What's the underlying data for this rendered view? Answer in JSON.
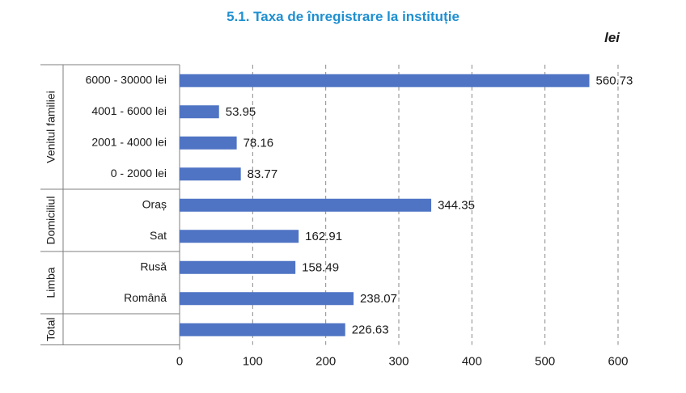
{
  "title": "5.1. Taxa de înregistrare la instituție",
  "unit": "lei",
  "chart_data": {
    "type": "bar",
    "orientation": "horizontal",
    "title": "5.1. Taxa de înregistrare la instituție",
    "unit": "lei",
    "categories": [
      "6000 - 30000 lei",
      "4001 - 6000 lei",
      "2001 - 4000 lei",
      "0 - 2000 lei",
      "Oraș",
      "Sat",
      "Rusă",
      "Română",
      ""
    ],
    "groups": [
      {
        "name": "Venitul familiei",
        "categories": [
          "6000 - 30000 lei",
          "4001 - 6000 lei",
          "2001 - 4000 lei",
          "0 - 2000 lei"
        ]
      },
      {
        "name": "Domiciliul",
        "categories": [
          "Oraș",
          "Sat"
        ]
      },
      {
        "name": "Limba",
        "categories": [
          "Rusă",
          "Română"
        ]
      },
      {
        "name": "Total",
        "categories": [
          ""
        ]
      }
    ],
    "values": [
      560.73,
      53.95,
      78.16,
      83.77,
      344.35,
      162.91,
      158.49,
      238.07,
      226.63
    ],
    "value_labels": [
      "560.73",
      "53.95",
      "78.16",
      "83.77",
      "344.35",
      "162.91",
      "158.49",
      "238.07",
      "226.63"
    ],
    "xlim": [
      0,
      600
    ],
    "xticks": [
      0,
      100,
      200,
      300,
      400,
      500,
      600
    ],
    "xlabel": "",
    "ylabel": "",
    "grid": "vertical-dashed",
    "bar_color": "#4f74c4",
    "title_color": "#1f8fd0"
  }
}
